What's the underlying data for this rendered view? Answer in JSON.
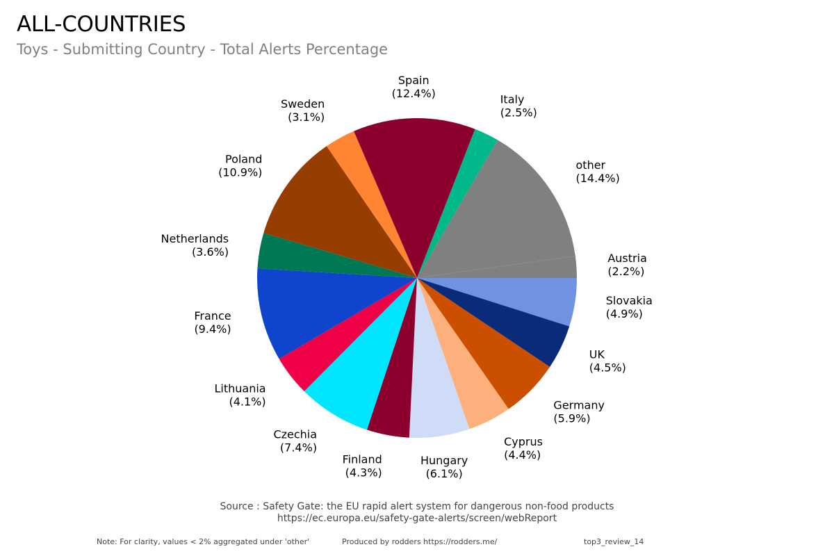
{
  "header": {
    "title": "ALL-COUNTRIES",
    "subtitle": "Toys - Submitting Country - Total Alerts Percentage"
  },
  "chart_data": {
    "type": "pie",
    "title": "ALL-COUNTRIES",
    "subtitle": "Toys - Submitting Country - Total Alerts Percentage",
    "direction": "clockwise",
    "start": "3 o'clock",
    "slices": [
      {
        "label": "Slovakia",
        "value": 4.9,
        "color": "#6f93e0"
      },
      {
        "label": "UK",
        "value": 4.5,
        "color": "#0a2b7a"
      },
      {
        "label": "Germany",
        "value": 5.9,
        "color": "#cc4f00"
      },
      {
        "label": "Cyprus",
        "value": 4.4,
        "color": "#fdb07b"
      },
      {
        "label": "Hungary",
        "value": 6.1,
        "color": "#cfdcf8"
      },
      {
        "label": "Finland",
        "value": 4.3,
        "color": "#8c002e"
      },
      {
        "label": "Czechia",
        "value": 7.4,
        "color": "#00e6ff"
      },
      {
        "label": "Lithuania",
        "value": 4.1,
        "color": "#f00046"
      },
      {
        "label": "France",
        "value": 9.4,
        "color": "#0f44cc"
      },
      {
        "label": "Netherlands",
        "value": 3.6,
        "color": "#007854"
      },
      {
        "label": "Poland",
        "value": 10.9,
        "color": "#963e02"
      },
      {
        "label": "Sweden",
        "value": 3.1,
        "color": "#ff8533"
      },
      {
        "label": "Spain",
        "value": 12.4,
        "color": "#8c002e"
      },
      {
        "label": "Italy",
        "value": 2.5,
        "color": "#00b88a"
      },
      {
        "label": "other",
        "value": 14.4,
        "color": "#808080"
      },
      {
        "label": "Austria",
        "value": 2.2,
        "color": "#808080"
      }
    ]
  },
  "source": {
    "line1": "Source : Safety Gate: the EU rapid alert system for dangerous non-food products",
    "line2": "https://ec.europa.eu/safety-gate-alerts/screen/webReport"
  },
  "footer": {
    "note": "Note: For clarity, values < 2% aggregated under 'other'",
    "produced": "Produced by rodders https://rodders.me/",
    "tag": "top3_review_14"
  }
}
